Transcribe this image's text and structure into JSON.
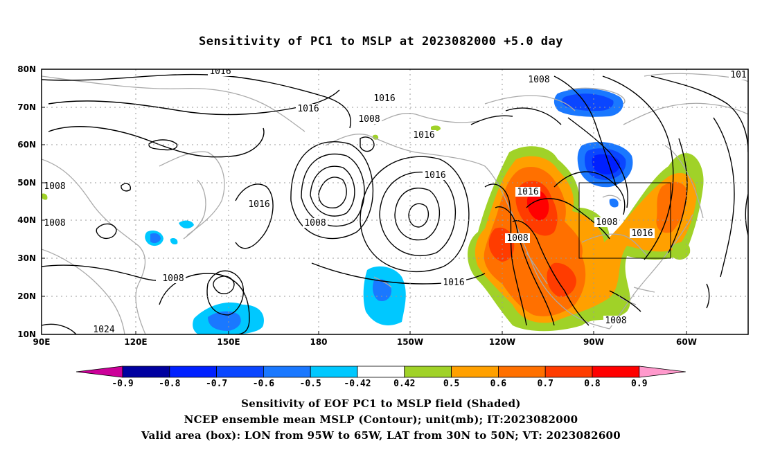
{
  "title": "Sensitivity of PC1 to MSLP at 2023082000 +5.0 day",
  "map": {
    "lon_labels": [
      "90E",
      "120E",
      "150E",
      "180",
      "150W",
      "120W",
      "90W",
      "60W"
    ],
    "lat_labels": [
      "80N",
      "70N",
      "60N",
      "50N",
      "40N",
      "30N",
      "20N",
      "10N"
    ],
    "contour_labels": [
      "1016",
      "1016",
      "1016",
      "1016",
      "1016",
      "1016",
      "1016",
      "1016",
      "1008",
      "1008",
      "1008",
      "1008",
      "1008",
      "1008",
      "1008",
      "1008",
      "1008",
      "1024",
      "1016",
      "101"
    ],
    "valid_box": {
      "lon_range": "95W to 65W",
      "lat_range": "30N to 50N"
    },
    "land_color": "#aaaaaa",
    "contour_color": "#000000"
  },
  "colorbar": {
    "labels": [
      "-0.9",
      "-0.8",
      "-0.7",
      "-0.6",
      "-0.5",
      "-0.42",
      "0.42",
      "0.5",
      "0.6",
      "0.7",
      "0.8",
      "0.9"
    ],
    "colors": [
      "#cc0099",
      "#0000a0",
      "#0020ff",
      "#0a46ff",
      "#1a78ff",
      "#00c8ff",
      "#ffffff",
      "#a0d228",
      "#ffa000",
      "#ff7000",
      "#ff3c00",
      "#ff0000",
      "#ff99cc"
    ]
  },
  "captions": [
    "Sensitivity of EOF PC1 to MSLP field (Shaded)",
    "NCEP ensemble mean MSLP (Contour); unit(mb); IT:2023082000",
    "Valid area (box): LON from 95W to 65W, LAT from 30N to 50N; VT: 2023082600"
  ]
}
